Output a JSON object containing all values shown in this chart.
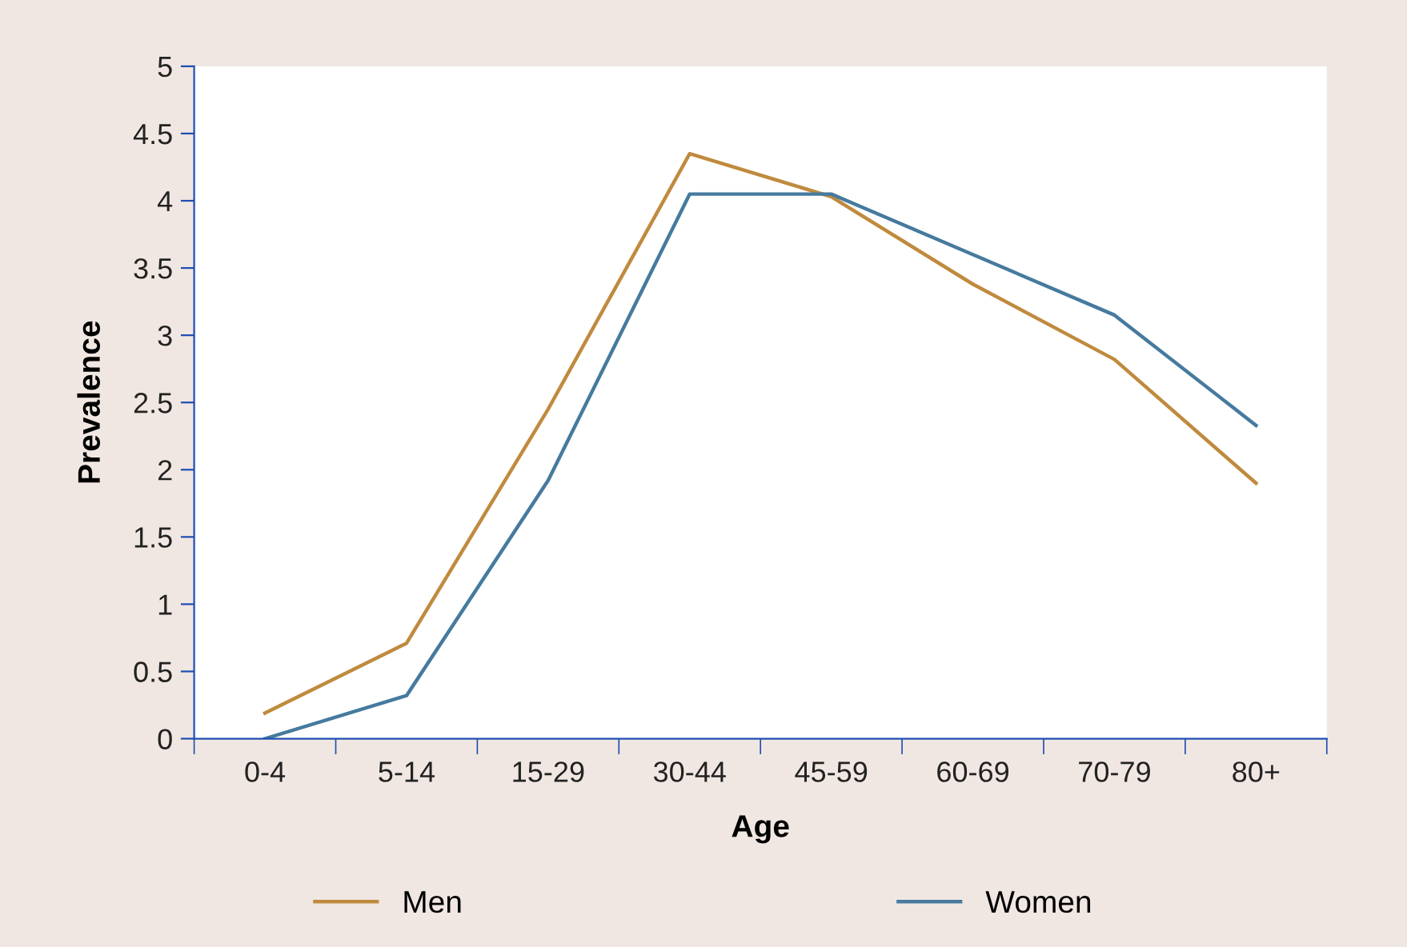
{
  "chart_data": {
    "type": "line",
    "xlabel": "Age",
    "ylabel": "Prevalence",
    "categories": [
      "0-4",
      "5-14",
      "15-29",
      "30-44",
      "45-59",
      "60-69",
      "70-79",
      "80+"
    ],
    "series": [
      {
        "name": "Men",
        "color": "#c08a3e",
        "values": [
          0.19,
          0.71,
          2.45,
          4.35,
          4.03,
          3.38,
          2.82,
          1.9
        ]
      },
      {
        "name": "Women",
        "color": "#467a9e",
        "values": [
          0,
          0.32,
          1.92,
          4.05,
          4.05,
          3.6,
          3.15,
          2.33
        ]
      }
    ],
    "ylim": [
      0,
      5
    ],
    "yticks": [
      0,
      0.5,
      1,
      1.5,
      2,
      2.5,
      3,
      3.5,
      4,
      4.5,
      5
    ],
    "grid": false,
    "legend": "bottom",
    "marker": "none",
    "line_style": "solid"
  }
}
